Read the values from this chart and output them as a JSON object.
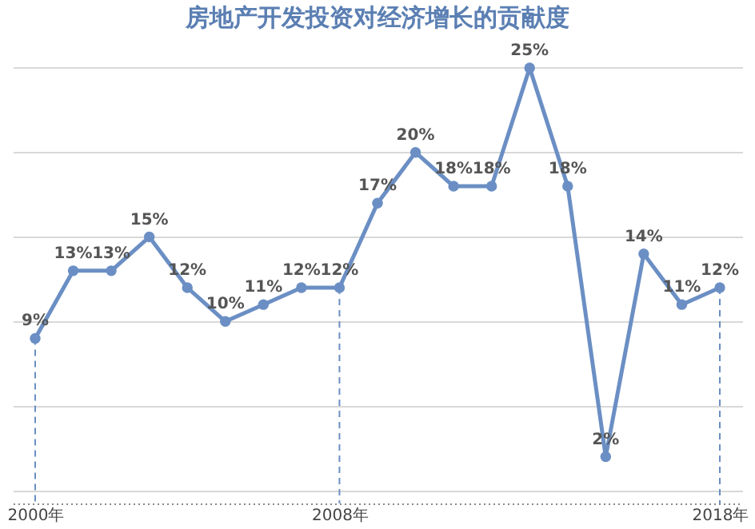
{
  "chart_data": {
    "type": "line",
    "title": "房地产开发投资对经济增长的贡献度",
    "categories": [
      "2000年",
      null,
      null,
      null,
      null,
      null,
      null,
      null,
      "2008年",
      null,
      null,
      null,
      null,
      null,
      null,
      null,
      null,
      null,
      "2018年"
    ],
    "series": [
      {
        "color": "#6b8fc4",
        "values": [
          9,
          13,
          13,
          15,
          12,
          10,
          11,
          12,
          12,
          17,
          20,
          18,
          18,
          25,
          18,
          2,
          14,
          11,
          12
        ],
        "value_labels": [
          "9%",
          "13%",
          "13%",
          "15%",
          "12%",
          "10%",
          "11%",
          "12%",
          "12%",
          "17%",
          "20%",
          "18%",
          "18%",
          "25%",
          "18%",
          "2%",
          "14%",
          "11%",
          "12%"
        ]
      }
    ],
    "grid": "y",
    "marker": "circle",
    "line_style": "solid",
    "ref_lines": [
      {
        "axis": "x",
        "value": "2000年",
        "line_style": "dashed",
        "color": "#6b8fc4"
      },
      {
        "axis": "x",
        "value": "2008年",
        "line_style": "dashed",
        "color": "#6b8fc4"
      },
      {
        "axis": "x",
        "value": "2018年",
        "line_style": "dashed",
        "color": "#6b8fc4"
      }
    ]
  }
}
